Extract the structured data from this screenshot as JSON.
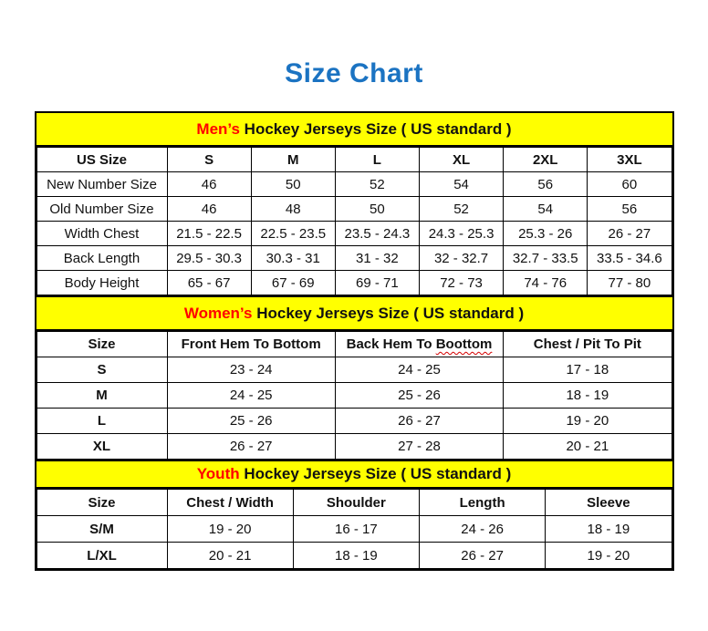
{
  "page": {
    "title": "Size Chart"
  },
  "colors": {
    "title_blue": "#1b73c2",
    "section_yellow": "#ffff00",
    "accent_red": "#ff0000",
    "border_black": "#000000"
  },
  "mens": {
    "header_accent": "Men’s",
    "header_rest": " Hockey Jerseys Size ( US standard )",
    "columns": [
      "US Size",
      "S",
      "M",
      "L",
      "XL",
      "2XL",
      "3XL"
    ],
    "rows": [
      {
        "label": "New Number Size",
        "values": [
          "46",
          "50",
          "52",
          "54",
          "56",
          "60"
        ]
      },
      {
        "label": "Old Number Size",
        "values": [
          "46",
          "48",
          "50",
          "52",
          "54",
          "56"
        ]
      },
      {
        "label": "Width Chest",
        "values": [
          "21.5 - 22.5",
          "22.5 - 23.5",
          "23.5 - 24.3",
          "24.3 - 25.3",
          "25.3 - 26",
          "26 - 27"
        ]
      },
      {
        "label": "Back Length",
        "values": [
          "29.5 - 30.3",
          "30.3 - 31",
          "31 - 32",
          "32 - 32.7",
          "32.7 - 33.5",
          "33.5 - 34.6"
        ]
      },
      {
        "label": "Body Height",
        "values": [
          "65 - 67",
          "67 - 69",
          "69 - 71",
          "72 - 73",
          "74 - 76",
          "77 - 80"
        ]
      }
    ]
  },
  "womens": {
    "header_accent": "Women’s",
    "header_rest": " Hockey Jerseys Size ( US standard )",
    "col_size": "Size",
    "col_front": "Front Hem To Bottom",
    "col_back_prefix": "Back Hem To",
    "col_back_word": "Boottom",
    "col_chest": "Chest / Pit To Pit",
    "rows": [
      {
        "label": "S",
        "values": [
          "23 - 24",
          "24 - 25",
          "17 - 18"
        ]
      },
      {
        "label": "M",
        "values": [
          "24 - 25",
          "25 - 26",
          "18 - 19"
        ]
      },
      {
        "label": "L",
        "values": [
          "25 - 26",
          "26 - 27",
          "19 - 20"
        ]
      },
      {
        "label": "XL",
        "values": [
          "26 - 27",
          "27 - 28",
          "20 - 21"
        ]
      }
    ]
  },
  "youth": {
    "header_accent": "Youth",
    "header_rest": " Hockey Jerseys Size ( US standard )",
    "columns": [
      "Size",
      "Chest / Width",
      "Shoulder",
      "Length",
      "Sleeve"
    ],
    "rows": [
      {
        "label": "S/M",
        "values": [
          "19 - 20",
          "16 - 17",
          "24 - 26",
          "18 - 19"
        ]
      },
      {
        "label": "L/XL",
        "values": [
          "20 - 21",
          "18 - 19",
          "26 - 27",
          "19 - 20"
        ]
      }
    ]
  }
}
